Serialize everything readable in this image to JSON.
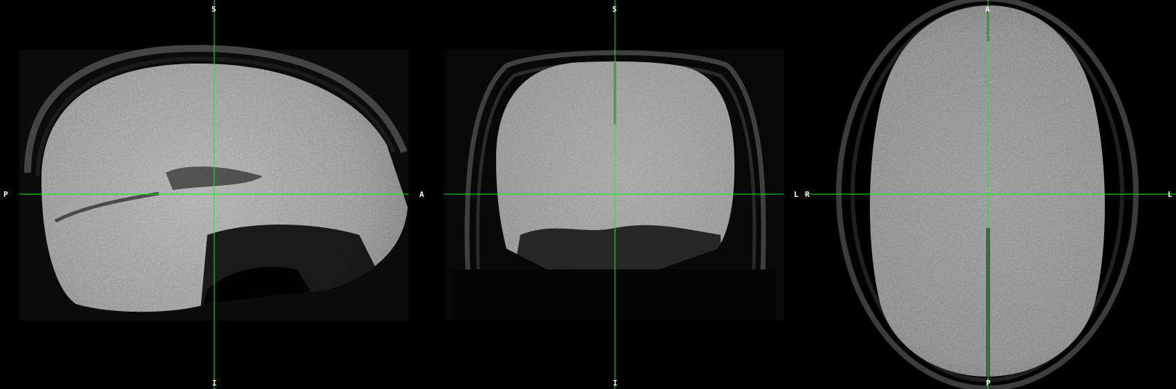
{
  "viewer": {
    "crosshair_color": "#00ff00",
    "background_color": "#000000",
    "label_color": "#ffffff",
    "views": [
      {
        "id": "sagittal",
        "labels": {
          "top": "S",
          "bottom": "I",
          "left": "P",
          "right": "A"
        }
      },
      {
        "id": "coronal",
        "labels": {
          "top": "S",
          "bottom": "I",
          "left": "R",
          "right": "L"
        }
      },
      {
        "id": "axial",
        "labels": {
          "top": "A",
          "bottom": "P",
          "left": "R",
          "right": "L"
        }
      }
    ]
  }
}
